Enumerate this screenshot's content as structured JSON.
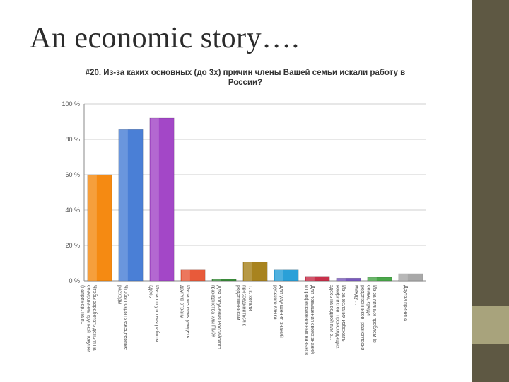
{
  "slide": {
    "title": "An economic story…."
  },
  "chart_data": {
    "type": "bar",
    "title": "#20. Из-за каких основных (до 3х) причин члены Вашей семьи искали работу в России?",
    "xlabel": "",
    "ylabel": "",
    "ylim": [
      0,
      100
    ],
    "y_ticks": [
      "0 %",
      "20 %",
      "40 %",
      "60 %",
      "80 %",
      "100 %"
    ],
    "grid": true,
    "legend": "none",
    "categories": [
      "Чтобы заработать деньги на совершение крупной покупки (например, на п...",
      "Чтобы покрыть ежедневные расходы",
      "Из-за отсутствия работы здесь",
      "Из-за желания увидеть другую страну",
      "Для получения Российского гражданства или ПМЖ",
      "Т. к. хотели присоединиться к родственникам",
      "Для улучшения знаний русского языка",
      "Для повышения своих знаний и профессиональных навыков",
      "Из-за желания избежать конфликтов, происходящих здесь на водной или з...",
      "Из-за личных проблем (в семье, среди родственников, разногласия между ...",
      "Другая причина"
    ],
    "values": [
      60,
      85.5,
      92,
      6.5,
      1,
      10.5,
      6.5,
      2.5,
      1.5,
      2,
      4
    ],
    "colors": [
      "#f58a12",
      "#4a7fd6",
      "#a347c7",
      "#e85a3a",
      "#3a8a3a",
      "#a8831e",
      "#2aa0d8",
      "#c8304a",
      "#7a5ac0",
      "#4aa84a",
      "#a8a8a8"
    ]
  }
}
